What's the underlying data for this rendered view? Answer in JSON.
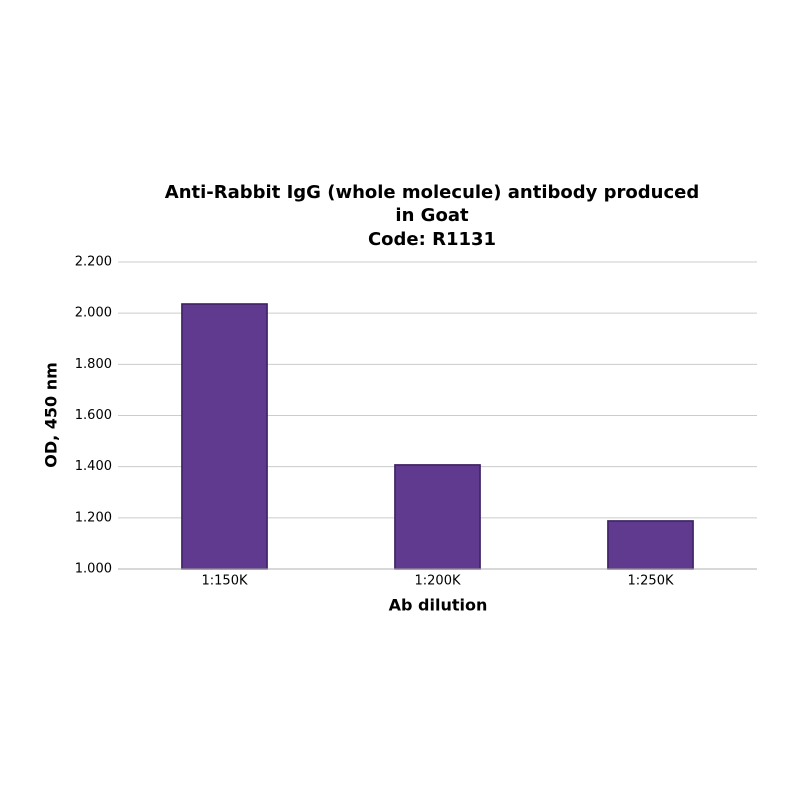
{
  "chart_data": {
    "type": "bar",
    "title": [
      "Anti-Rabbit IgG (whole molecule) antibody produced",
      "in Goat",
      "Code: R1131"
    ],
    "x_label": "Ab dilution",
    "y_label": "OD, 450 nm",
    "categories": [
      "1:150K",
      "1:200K",
      "1:250K"
    ],
    "values": [
      2.036,
      1.407,
      1.188
    ],
    "color": "#5f3a8e",
    "edge_color": "#3b1f60",
    "ylim": [
      1.0,
      2.2
    ],
    "yticks": [
      {
        "value": 1.0,
        "label": "1.000"
      },
      {
        "value": 1.2,
        "label": "1.200"
      },
      {
        "value": 1.4,
        "label": "1.400"
      },
      {
        "value": 1.6,
        "label": "1.600"
      },
      {
        "value": 1.8,
        "label": "1.800"
      },
      {
        "value": 2.0,
        "label": "2.000"
      },
      {
        "value": 2.2,
        "label": "2.200"
      }
    ],
    "grid": true
  }
}
